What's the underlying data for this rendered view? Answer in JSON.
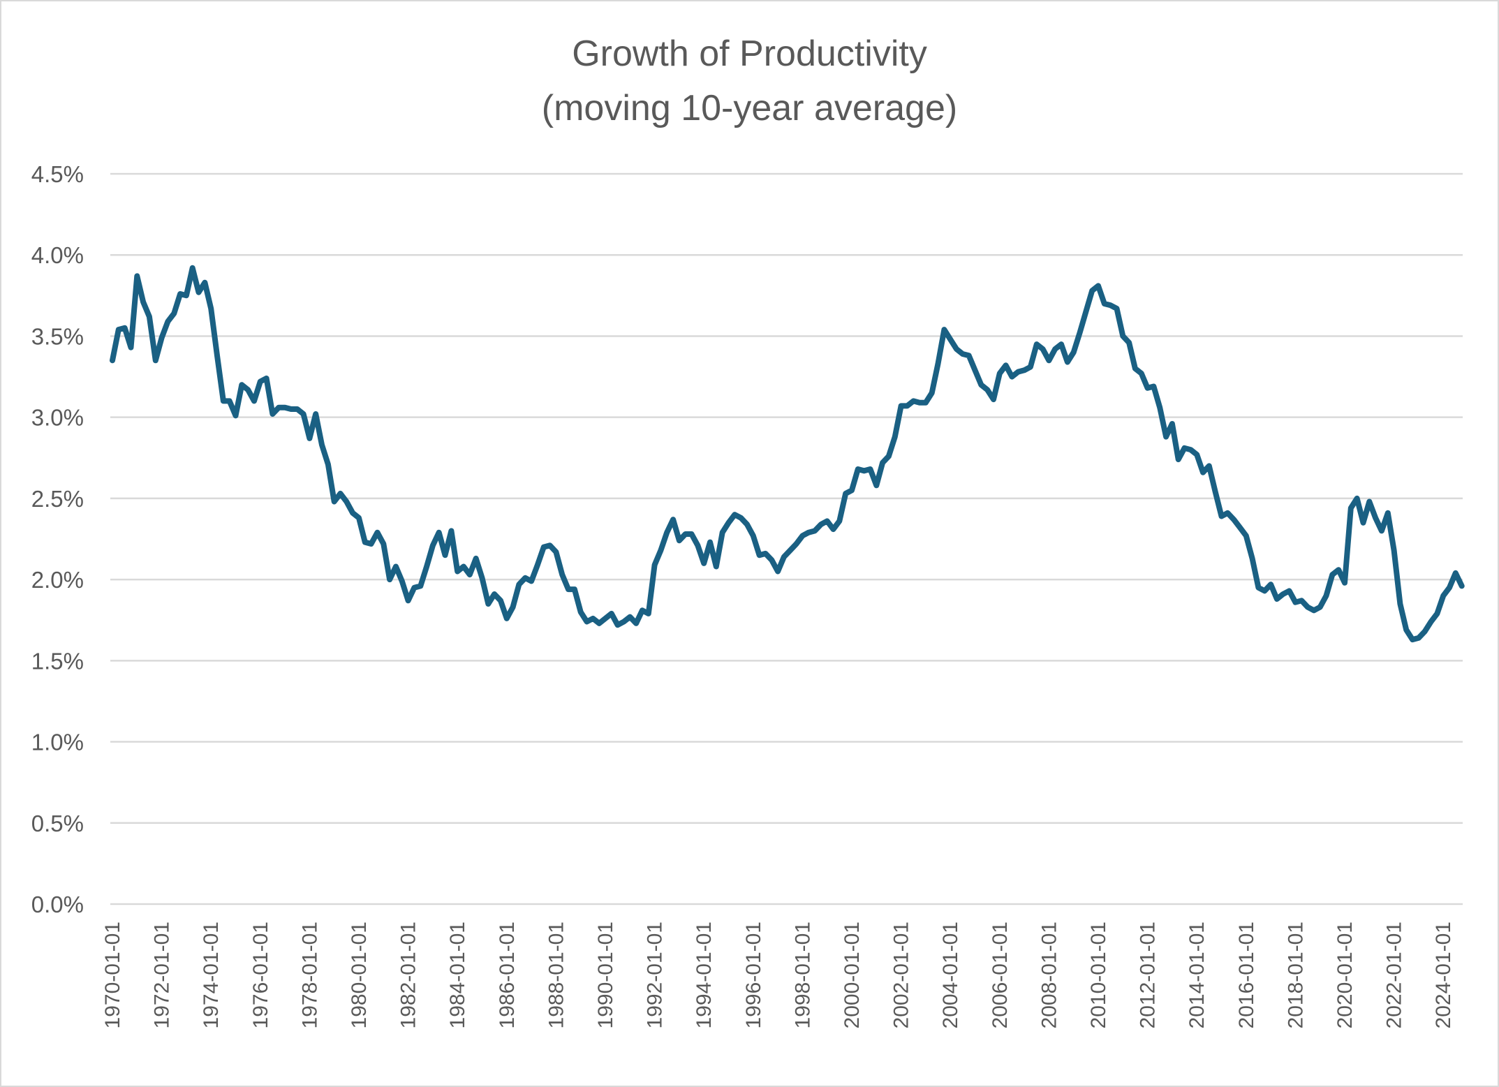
{
  "chart_data": {
    "type": "line",
    "title": "Growth of Productivity",
    "subtitle": "(moving 10-year average)",
    "xlabel": "",
    "ylabel": "",
    "ylim": [
      0.0,
      4.5
    ],
    "y_ticks": [
      "0.0%",
      "0.5%",
      "1.0%",
      "1.5%",
      "2.0%",
      "2.5%",
      "3.0%",
      "3.5%",
      "4.0%",
      "4.5%"
    ],
    "y_tick_values": [
      0.0,
      0.5,
      1.0,
      1.5,
      2.0,
      2.5,
      3.0,
      3.5,
      4.0,
      4.5
    ],
    "x_ticks": [
      "1970-01-01",
      "1972-01-01",
      "1974-01-01",
      "1976-01-01",
      "1978-01-01",
      "1980-01-01",
      "1982-01-01",
      "1984-01-01",
      "1986-01-01",
      "1988-01-01",
      "1990-01-01",
      "1992-01-01",
      "1994-01-01",
      "1996-01-01",
      "1998-01-01",
      "2000-01-01",
      "2002-01-01",
      "2004-01-01",
      "2006-01-01",
      "2008-01-01",
      "2010-01-01",
      "2012-01-01",
      "2014-01-01",
      "2016-01-01",
      "2018-01-01",
      "2020-01-01",
      "2022-01-01",
      "2024-01-01"
    ],
    "x_start": "1970-01-01",
    "x_frequency": "quarterly",
    "grid": true,
    "legend": "none",
    "line_color": "#1a6083",
    "series": [
      {
        "name": "Growth of Productivity (moving 10-year average)",
        "unit": "%",
        "values": [
          3.35,
          3.54,
          3.55,
          3.43,
          3.87,
          3.71,
          3.62,
          3.35,
          3.49,
          3.59,
          3.64,
          3.76,
          3.75,
          3.92,
          3.77,
          3.83,
          3.67,
          3.38,
          3.1,
          3.1,
          3.01,
          3.2,
          3.17,
          3.1,
          3.22,
          3.24,
          3.02,
          3.06,
          3.06,
          3.05,
          3.05,
          3.02,
          2.87,
          3.02,
          2.83,
          2.71,
          2.48,
          2.53,
          2.48,
          2.41,
          2.38,
          2.23,
          2.22,
          2.29,
          2.22,
          2.0,
          2.08,
          1.99,
          1.87,
          1.95,
          1.96,
          2.08,
          2.21,
          2.29,
          2.15,
          2.3,
          2.05,
          2.08,
          2.03,
          2.13,
          2.01,
          1.85,
          1.91,
          1.87,
          1.76,
          1.83,
          1.97,
          2.01,
          1.99,
          2.09,
          2.2,
          2.21,
          2.17,
          2.03,
          1.94,
          1.94,
          1.8,
          1.74,
          1.76,
          1.73,
          1.76,
          1.79,
          1.72,
          1.74,
          1.77,
          1.73,
          1.81,
          1.79,
          2.09,
          2.18,
          2.29,
          2.37,
          2.24,
          2.28,
          2.28,
          2.21,
          2.1,
          2.23,
          2.08,
          2.29,
          2.35,
          2.4,
          2.38,
          2.34,
          2.27,
          2.15,
          2.16,
          2.12,
          2.05,
          2.14,
          2.18,
          2.22,
          2.27,
          2.29,
          2.3,
          2.34,
          2.36,
          2.31,
          2.36,
          2.53,
          2.55,
          2.68,
          2.67,
          2.68,
          2.58,
          2.72,
          2.76,
          2.88,
          3.07,
          3.07,
          3.1,
          3.09,
          3.09,
          3.15,
          3.33,
          3.54,
          3.48,
          3.42,
          3.39,
          3.38,
          3.29,
          3.2,
          3.17,
          3.11,
          3.27,
          3.32,
          3.25,
          3.28,
          3.29,
          3.31,
          3.45,
          3.42,
          3.35,
          3.42,
          3.45,
          3.34,
          3.4,
          3.52,
          3.65,
          3.78,
          3.81,
          3.7,
          3.69,
          3.67,
          3.5,
          3.46,
          3.3,
          3.27,
          3.18,
          3.19,
          3.06,
          2.88,
          2.96,
          2.74,
          2.81,
          2.8,
          2.77,
          2.66,
          2.7,
          2.54,
          2.39,
          2.41,
          2.37,
          2.32,
          2.27,
          2.13,
          1.95,
          1.93,
          1.97,
          1.88,
          1.91,
          1.93,
          1.86,
          1.87,
          1.83,
          1.81,
          1.83,
          1.9,
          2.03,
          2.06,
          1.98,
          2.44,
          2.5,
          2.35,
          2.48,
          2.38,
          2.3,
          2.41,
          2.18,
          1.85,
          1.69,
          1.63,
          1.64,
          1.68,
          1.74,
          1.79,
          1.9,
          1.95,
          2.04,
          1.96
        ]
      }
    ]
  }
}
